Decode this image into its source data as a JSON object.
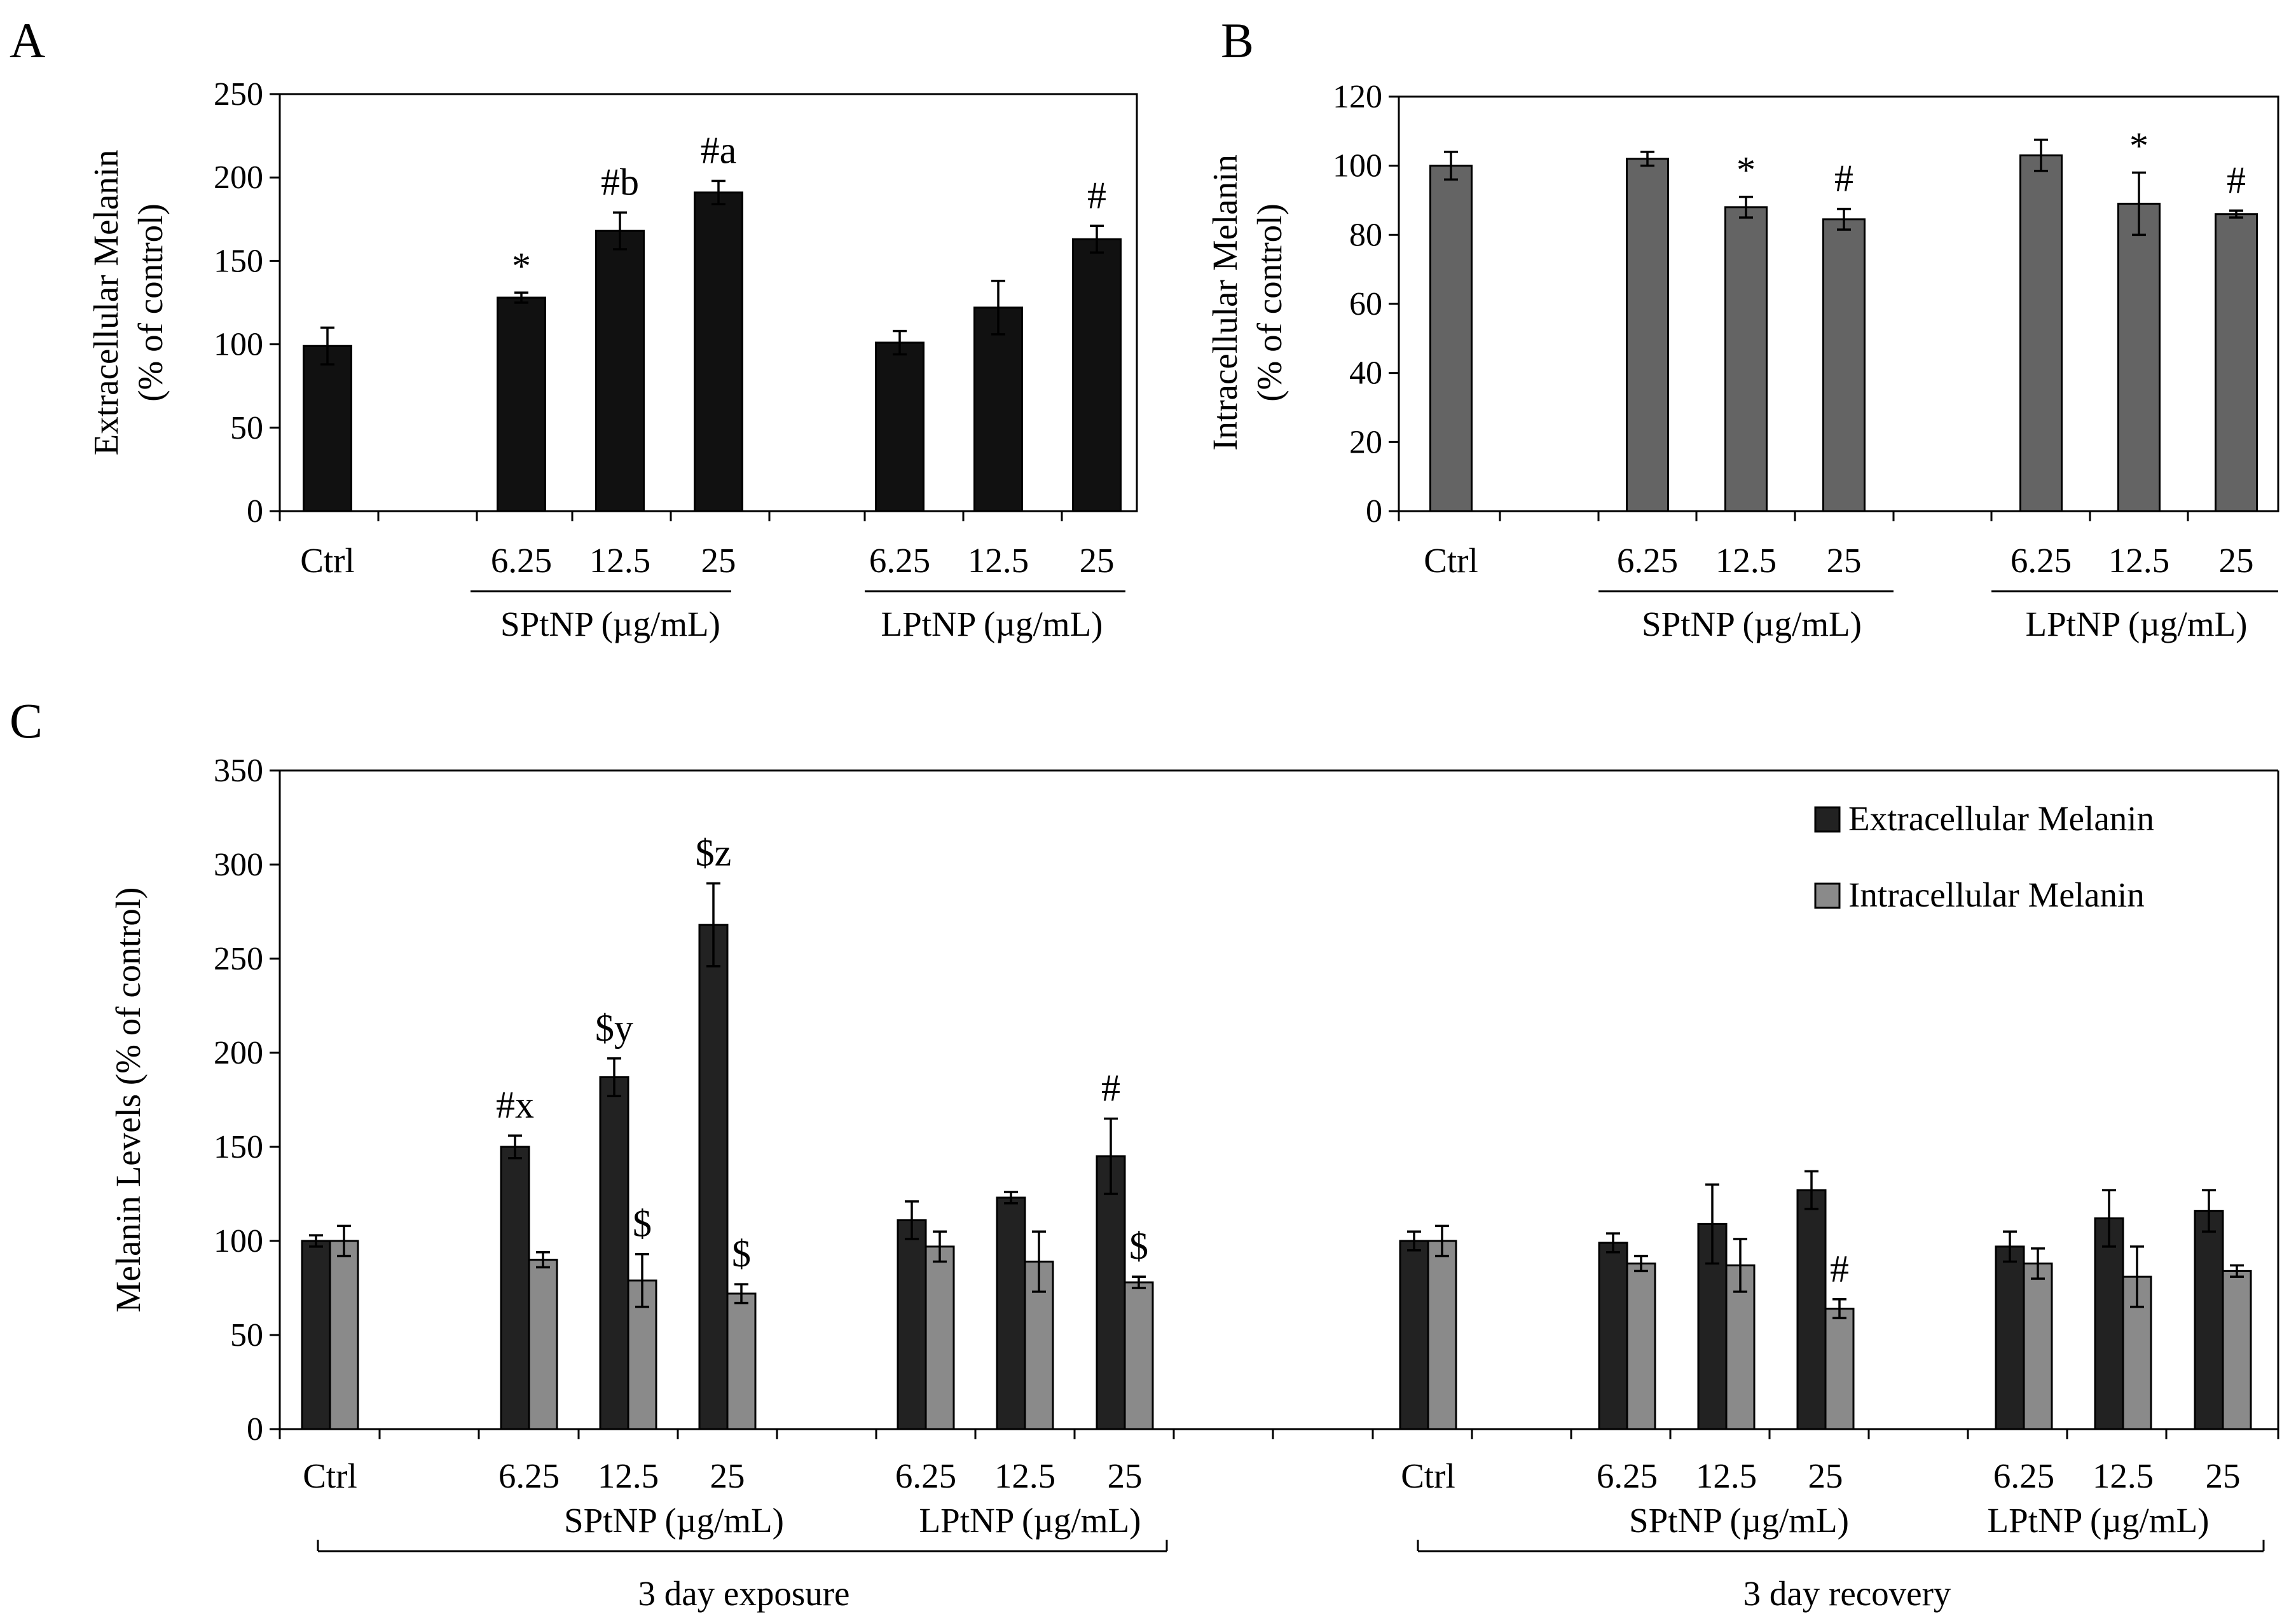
{
  "chart_data": [
    {
      "panel": "A",
      "type": "bar",
      "categories": [
        "Ctrl",
        "6.25",
        "12.5",
        "25",
        "6.25",
        "12.5",
        "25"
      ],
      "groups": [
        "SPtNP (µg/mL)",
        "LPtNP (µg/mL)"
      ],
      "series": [
        {
          "values": [
            99,
            128,
            168,
            191,
            101,
            122,
            163
          ],
          "errors": [
            11,
            3,
            11,
            7,
            7,
            16,
            8
          ],
          "annotations": [
            "",
            "*",
            "#b",
            "#a",
            "",
            "",
            "#"
          ]
        }
      ],
      "ylabel": [
        "Extracellular Melanin",
        "(% of control)"
      ],
      "ylim": [
        0,
        250
      ],
      "yticks": [
        "0",
        "50",
        "100",
        "150",
        "200",
        "250"
      ],
      "colors": [
        "#111111"
      ]
    },
    {
      "panel": "B",
      "type": "bar",
      "categories": [
        "Ctrl",
        "6.25",
        "12.5",
        "25",
        "6.25",
        "12.5",
        "25"
      ],
      "groups": [
        "SPtNP (µg/mL)",
        "LPtNP (µg/mL)"
      ],
      "series": [
        {
          "values": [
            100,
            102,
            88,
            84.5,
            103,
            89,
            86
          ],
          "errors": [
            4,
            2,
            3,
            3,
            4.5,
            9,
            1
          ],
          "annotations": [
            "",
            "",
            "*",
            "#",
            "",
            "*",
            "#"
          ]
        }
      ],
      "ylabel": [
        "Intracellular Melanin",
        "(% of control)"
      ],
      "ylim": [
        0,
        120
      ],
      "yticks": [
        "0",
        "20",
        "40",
        "60",
        "80",
        "100",
        "120"
      ],
      "colors": [
        "#646464"
      ]
    },
    {
      "panel": "C",
      "type": "bar",
      "categories": [
        "Ctrl",
        "6.25",
        "12.5",
        "25",
        "6.25",
        "12.5",
        "25",
        "Ctrl",
        "6.25",
        "12.5",
        "25",
        "6.25",
        "12.5",
        "25"
      ],
      "groups": [
        "SPtNP (µg/mL)",
        "LPtNP (µg/mL)",
        "SPtNP (µg/mL)",
        "LPtNP (µg/mL)"
      ],
      "periods": [
        "3 day exposure",
        "3 day recovery"
      ],
      "series": [
        {
          "name": "Extracellular Melanin",
          "values": [
            100,
            150,
            187,
            268,
            111,
            123,
            145,
            100,
            99,
            109,
            127,
            97,
            112,
            116
          ],
          "errors": [
            3,
            6,
            10,
            22,
            10,
            3,
            20,
            5,
            5,
            21,
            10,
            8,
            15,
            11
          ],
          "annotations": [
            "",
            "#x",
            "$y",
            "$z",
            "",
            "",
            "#",
            "",
            "",
            "",
            "",
            "",
            "",
            ""
          ]
        },
        {
          "name": "Intracellular Melanin",
          "values": [
            100,
            90,
            79,
            72,
            97,
            89,
            78,
            100,
            88,
            87,
            64,
            88,
            81,
            84
          ],
          "errors": [
            8,
            4,
            14,
            5,
            8,
            16,
            3,
            8,
            4,
            14,
            5,
            8,
            16,
            3
          ],
          "annotations": [
            "",
            "",
            "$",
            "$",
            "",
            "",
            "$",
            "",
            "",
            "",
            "#",
            "",
            "",
            ""
          ]
        }
      ],
      "ylabel": "Melanin Levels (% of control)",
      "ylim": [
        0,
        350
      ],
      "yticks": [
        "0",
        "50",
        "100",
        "150",
        "200",
        "250",
        "300",
        "350"
      ],
      "legend": "top-right",
      "colors": [
        "#222222",
        "#8a8a8a"
      ]
    }
  ]
}
